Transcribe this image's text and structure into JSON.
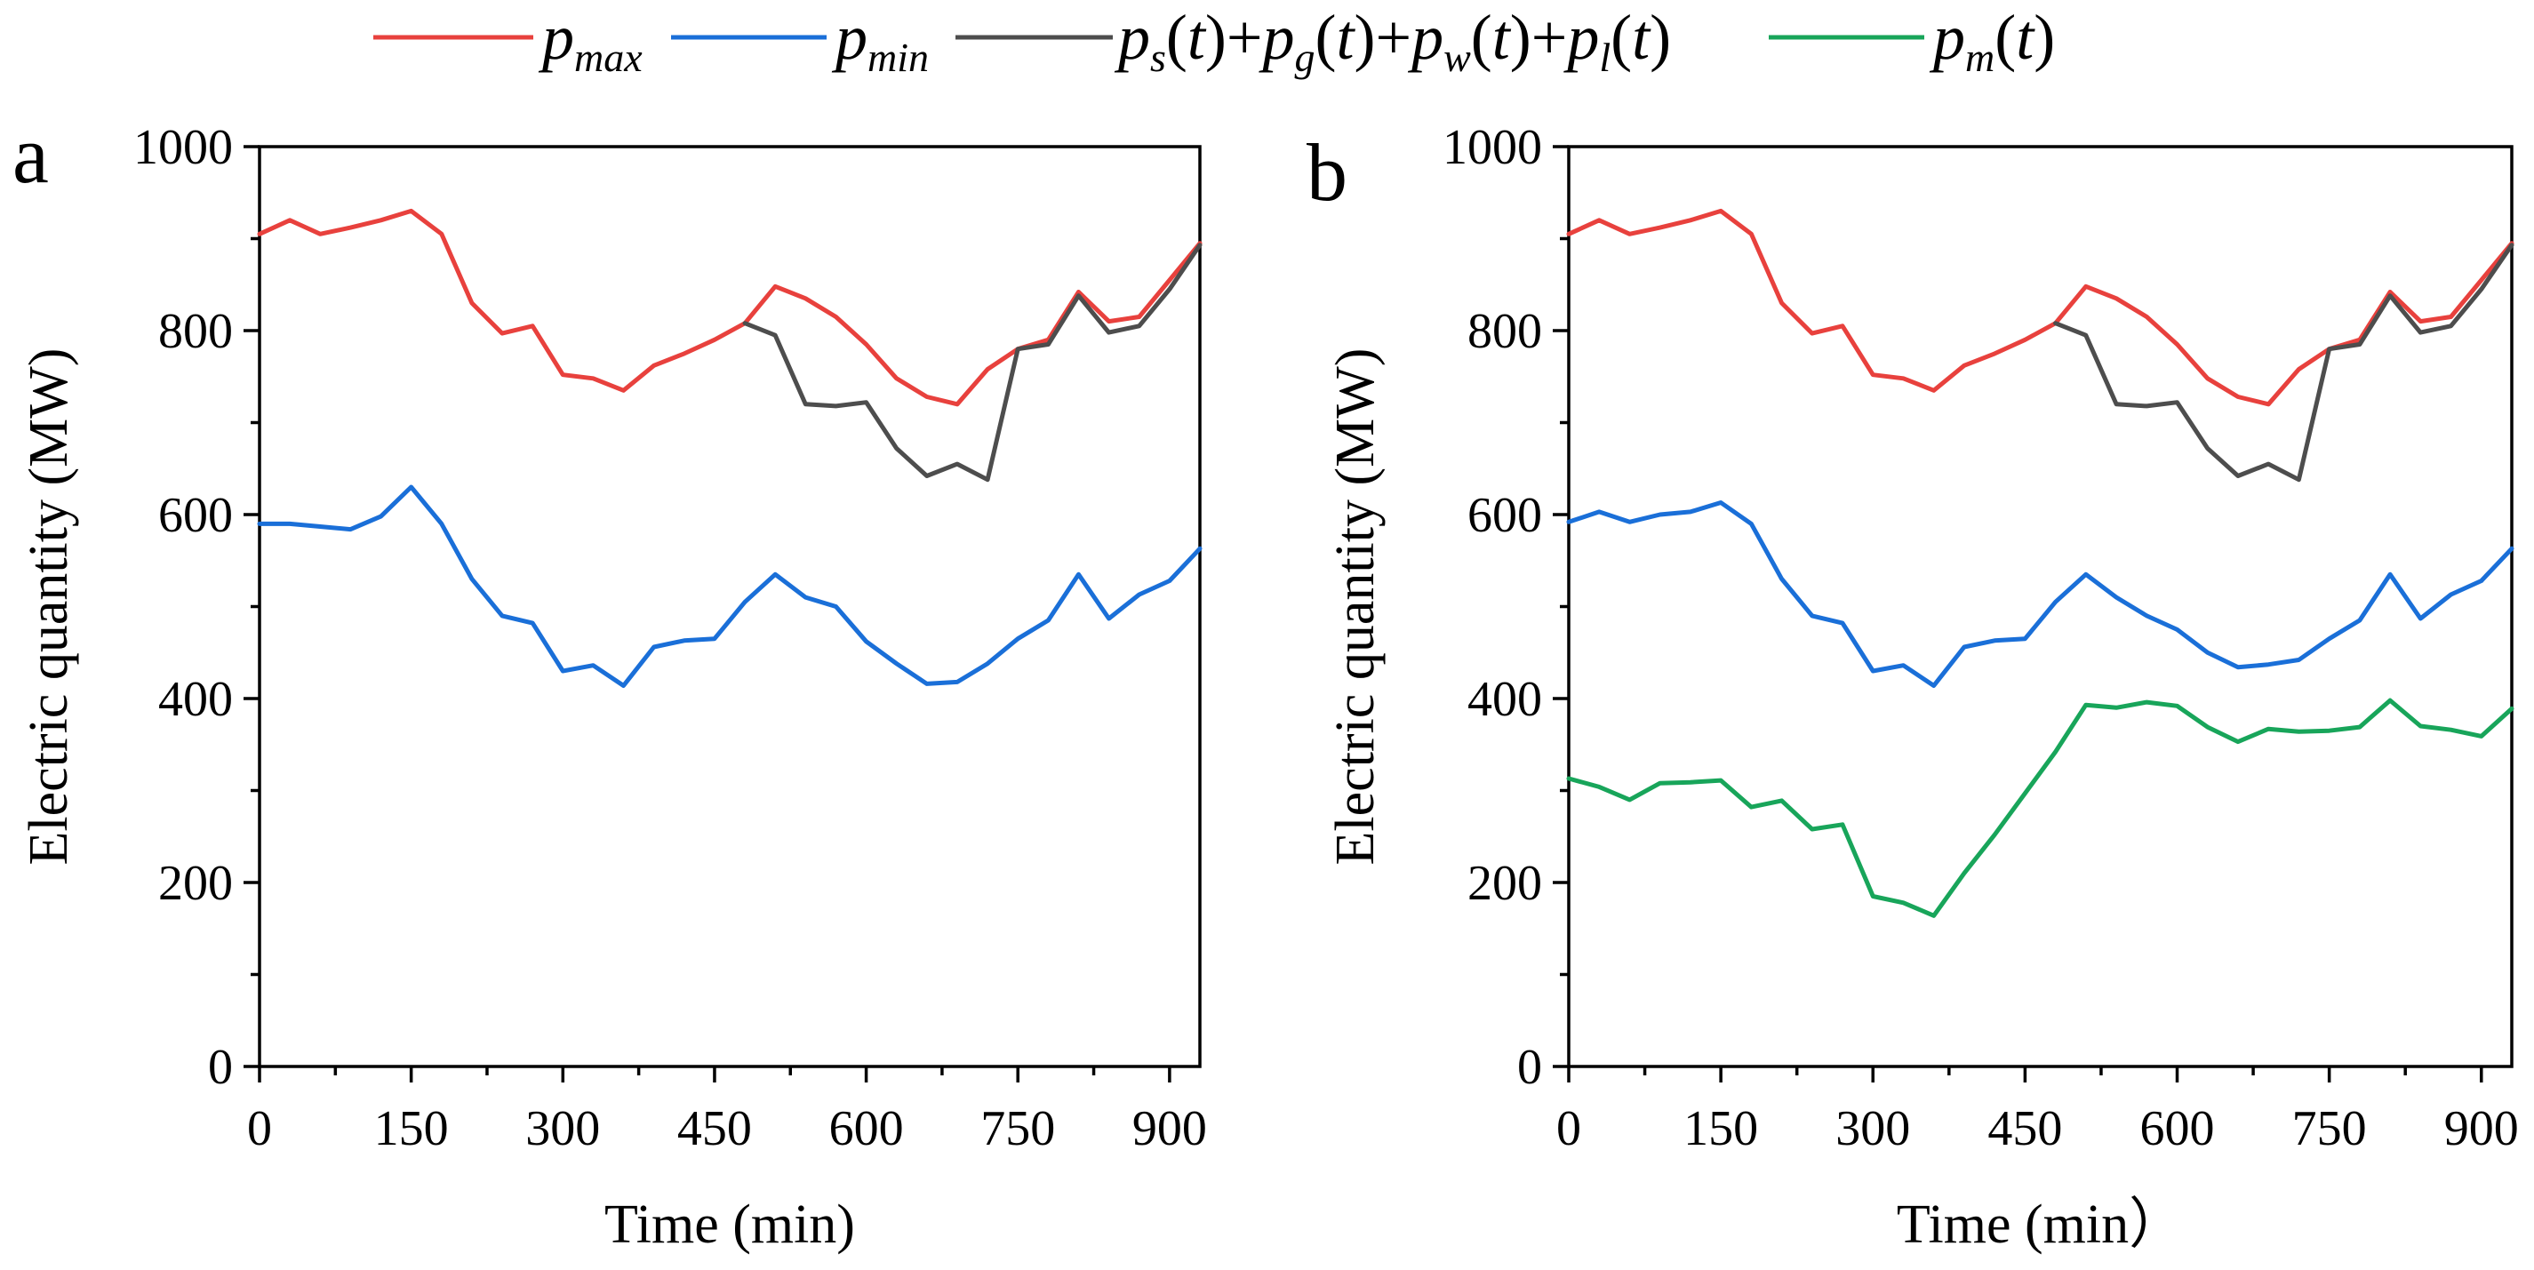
{
  "chart_data": [
    {
      "type": "line",
      "panel_label": "a",
      "xlabel": "Time (min)",
      "ylabel": "Electric quantity (MW)",
      "xlim": [
        0,
        930
      ],
      "ylim": [
        0,
        1000
      ],
      "xticks": [
        0,
        150,
        300,
        450,
        600,
        750,
        900
      ],
      "yticks": [
        0,
        200,
        400,
        600,
        800,
        1000
      ],
      "x": [
        0,
        30,
        60,
        90,
        120,
        150,
        180,
        210,
        240,
        270,
        300,
        330,
        360,
        390,
        420,
        450,
        480,
        510,
        540,
        570,
        600,
        630,
        660,
        690,
        720,
        750,
        780,
        810,
        840,
        870,
        900,
        930
      ],
      "series": [
        {
          "name": "p_max",
          "color": "#e8413d",
          "values": [
            905,
            920,
            905,
            912,
            920,
            930,
            905,
            830,
            797,
            805,
            752,
            748,
            735,
            762,
            775,
            790,
            808,
            848,
            835,
            815,
            785,
            748,
            728,
            720,
            758,
            780,
            790,
            842,
            810,
            815,
            855,
            895
          ]
        },
        {
          "name": "p_min",
          "color": "#1a6fd8",
          "values": [
            590,
            590,
            587,
            584,
            598,
            630,
            590,
            530,
            490,
            482,
            430,
            436,
            414,
            456,
            463,
            465,
            505,
            535,
            510,
            500,
            462,
            438,
            416,
            418,
            438,
            465,
            485,
            535,
            487,
            513,
            528,
            563
          ]
        },
        {
          "name": "p_s(t)+p_g(t)+p_w(t)+p_l(t)",
          "color": "#4d4d4d",
          "x": [
            480,
            510,
            540,
            570,
            600,
            630,
            660,
            690,
            720,
            750,
            780,
            810,
            840,
            870,
            900,
            930
          ],
          "values": [
            808,
            795,
            720,
            718,
            722,
            672,
            642,
            655,
            638,
            780,
            785,
            838,
            798,
            805,
            845,
            893
          ]
        }
      ]
    },
    {
      "type": "line",
      "panel_label": "b",
      "xlabel": "Time (min）",
      "ylabel": "Electric quantity (MW)",
      "xlim": [
        0,
        930
      ],
      "ylim": [
        0,
        1000
      ],
      "xticks": [
        0,
        150,
        300,
        450,
        600,
        750,
        900
      ],
      "yticks": [
        0,
        200,
        400,
        600,
        800,
        1000
      ],
      "x": [
        0,
        30,
        60,
        90,
        120,
        150,
        180,
        210,
        240,
        270,
        300,
        330,
        360,
        390,
        420,
        450,
        480,
        510,
        540,
        570,
        600,
        630,
        660,
        690,
        720,
        750,
        780,
        810,
        840,
        870,
        900,
        930
      ],
      "series": [
        {
          "name": "p_max",
          "color": "#e8413d",
          "values": [
            905,
            920,
            905,
            912,
            920,
            930,
            905,
            830,
            797,
            805,
            752,
            748,
            735,
            762,
            775,
            790,
            808,
            848,
            835,
            815,
            785,
            748,
            728,
            720,
            758,
            780,
            790,
            842,
            810,
            815,
            855,
            895
          ]
        },
        {
          "name": "p_min",
          "color": "#1a6fd8",
          "values": [
            592,
            603,
            592,
            600,
            603,
            613,
            590,
            530,
            490,
            482,
            430,
            436,
            414,
            456,
            463,
            465,
            505,
            535,
            510,
            490,
            475,
            450,
            434,
            437,
            442,
            465,
            485,
            535,
            487,
            513,
            528,
            563
          ]
        },
        {
          "name": "p_s(t)+p_g(t)+p_w(t)+p_l(t)",
          "color": "#4d4d4d",
          "x": [
            480,
            510,
            540,
            570,
            600,
            630,
            660,
            690,
            720,
            750,
            780,
            810,
            840,
            870,
            900,
            930
          ],
          "values": [
            808,
            795,
            720,
            718,
            722,
            672,
            642,
            655,
            638,
            780,
            785,
            838,
            798,
            805,
            845,
            893
          ]
        },
        {
          "name": "p_m(t)",
          "color": "#18a55a",
          "values": [
            313,
            304,
            290,
            308,
            309,
            311,
            282,
            289,
            258,
            263,
            185,
            178,
            164,
            210,
            252,
            297,
            342,
            393,
            390,
            396,
            392,
            369,
            353,
            367,
            364,
            365,
            369,
            398,
            370,
            366,
            359,
            389
          ]
        }
      ]
    }
  ],
  "legend": {
    "position": "top-center",
    "entries": [
      {
        "series": "p_max",
        "color": "#e8413d"
      },
      {
        "series": "p_min",
        "color": "#1a6fd8"
      },
      {
        "series": "p_s(t)+p_g(t)+p_w(t)+p_l(t)",
        "color": "#4d4d4d"
      },
      {
        "series": "p_m(t)",
        "color": "#18a55a"
      }
    ]
  }
}
